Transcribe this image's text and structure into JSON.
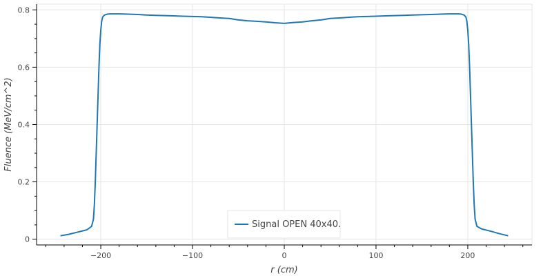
{
  "chart_data": {
    "type": "line",
    "title": "",
    "xlabel": "r (cm)",
    "ylabel": "Fluence (MeV/cm^2)",
    "xlim": [
      -270,
      270
    ],
    "ylim": [
      -0.02,
      0.82
    ],
    "grid": true,
    "legend_placement": "bottom-center",
    "x_ticks": [
      -200,
      -100,
      0,
      100,
      200
    ],
    "x_tick_labels": [
      "−200",
      "−100",
      "0",
      "100",
      "200"
    ],
    "y_ticks": [
      0,
      0.2,
      0.4,
      0.6,
      0.8
    ],
    "y_tick_labels": [
      "0",
      "0.2",
      "0.4",
      "0.6",
      "0.8"
    ],
    "series": [
      {
        "name": "Signal OPEN 40x40.",
        "color": "#1f77b4",
        "x": [
          -244,
          -235,
          -225,
          -215,
          -210,
          -208,
          -207,
          -206,
          -205,
          -204,
          -203,
          -202,
          -201,
          -200,
          -199,
          -198,
          -196,
          -193,
          -190,
          -180,
          -170,
          -160,
          -150,
          -140,
          -130,
          -120,
          -110,
          -100,
          -90,
          -80,
          -70,
          -60,
          -50,
          -40,
          -30,
          -20,
          -10,
          0,
          10,
          20,
          30,
          40,
          50,
          60,
          70,
          80,
          90,
          100,
          110,
          120,
          130,
          140,
          150,
          160,
          170,
          180,
          190,
          193,
          196,
          198,
          199,
          200,
          201,
          202,
          203,
          204,
          205,
          206,
          207,
          208,
          210,
          215,
          225,
          235,
          244
        ],
        "values": [
          0.012,
          0.017,
          0.025,
          0.033,
          0.045,
          0.07,
          0.12,
          0.2,
          0.3,
          0.4,
          0.5,
          0.6,
          0.68,
          0.73,
          0.76,
          0.775,
          0.782,
          0.785,
          0.786,
          0.786,
          0.785,
          0.784,
          0.782,
          0.781,
          0.78,
          0.779,
          0.778,
          0.777,
          0.776,
          0.774,
          0.772,
          0.77,
          0.765,
          0.762,
          0.76,
          0.758,
          0.755,
          0.753,
          0.756,
          0.758,
          0.762,
          0.765,
          0.77,
          0.772,
          0.774,
          0.776,
          0.777,
          0.778,
          0.779,
          0.78,
          0.781,
          0.782,
          0.783,
          0.784,
          0.785,
          0.786,
          0.786,
          0.785,
          0.782,
          0.775,
          0.76,
          0.73,
          0.68,
          0.6,
          0.5,
          0.4,
          0.3,
          0.2,
          0.12,
          0.07,
          0.045,
          0.036,
          0.028,
          0.019,
          0.012
        ]
      }
    ]
  }
}
